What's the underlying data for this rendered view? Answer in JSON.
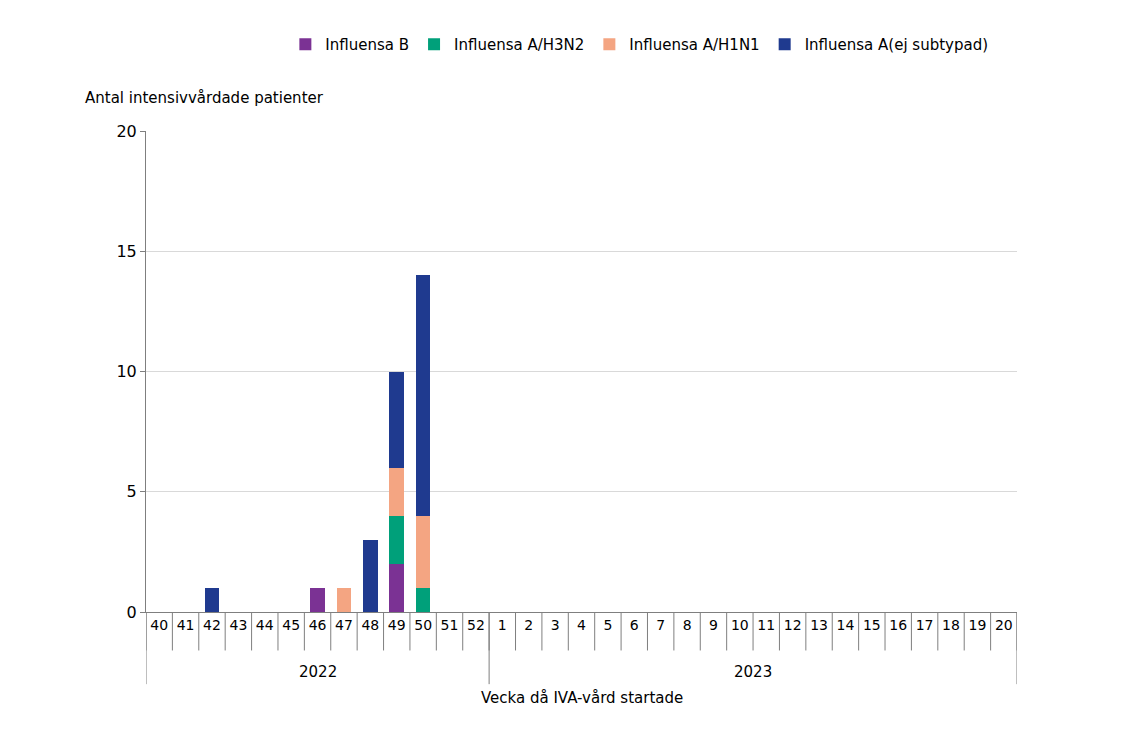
{
  "chart_data": {
    "type": "bar",
    "stacked": true,
    "y_label": "Antal intensivvårdade patienter",
    "x_label": "Vecka då IVA-vård startade",
    "categories": [
      "40",
      "41",
      "42",
      "43",
      "44",
      "45",
      "46",
      "47",
      "48",
      "49",
      "50",
      "51",
      "52",
      "1",
      "2",
      "3",
      "4",
      "5",
      "6",
      "7",
      "8",
      "9",
      "10",
      "11",
      "12",
      "13",
      "14",
      "15",
      "16",
      "17",
      "18",
      "19",
      "20"
    ],
    "category_groups": [
      "2022",
      "2022",
      "2022",
      "2022",
      "2022",
      "2022",
      "2022",
      "2022",
      "2022",
      "2022",
      "2022",
      "2022",
      "2022",
      "2023",
      "2023",
      "2023",
      "2023",
      "2023",
      "2023",
      "2023",
      "2023",
      "2023",
      "2023",
      "2023",
      "2023",
      "2023",
      "2023",
      "2023",
      "2023",
      "2023",
      "2023",
      "2023",
      "2023"
    ],
    "series": [
      {
        "name": "Influensa B",
        "color": "#7b3294",
        "values": [
          0,
          0,
          0,
          0,
          0,
          0,
          1,
          0,
          0,
          2,
          0,
          0,
          0,
          0,
          0,
          0,
          0,
          0,
          0,
          0,
          0,
          0,
          0,
          0,
          0,
          0,
          0,
          0,
          0,
          0,
          0,
          0,
          0
        ]
      },
      {
        "name": "Influensa A/H3N2",
        "color": "#00a07a",
        "values": [
          0,
          0,
          0,
          0,
          0,
          0,
          0,
          0,
          0,
          2,
          1,
          0,
          0,
          0,
          0,
          0,
          0,
          0,
          0,
          0,
          0,
          0,
          0,
          0,
          0,
          0,
          0,
          0,
          0,
          0,
          0,
          0,
          0
        ]
      },
      {
        "name": "Influensa A/H1N1",
        "color": "#f4a582",
        "values": [
          0,
          0,
          0,
          0,
          0,
          0,
          0,
          1,
          0,
          2,
          3,
          0,
          0,
          0,
          0,
          0,
          0,
          0,
          0,
          0,
          0,
          0,
          0,
          0,
          0,
          0,
          0,
          0,
          0,
          0,
          0,
          0,
          0
        ]
      },
      {
        "name": "Influensa A(ej subtypad)",
        "color": "#1f3a8f",
        "values": [
          0,
          0,
          1,
          0,
          0,
          0,
          0,
          0,
          3,
          4,
          10,
          0,
          0,
          0,
          0,
          0,
          0,
          0,
          0,
          0,
          0,
          0,
          0,
          0,
          0,
          0,
          0,
          0,
          0,
          0,
          0,
          0,
          0
        ]
      }
    ],
    "ylim": [
      0,
      20
    ],
    "yticks": [
      0,
      5,
      10,
      15,
      20
    ],
    "grid": true,
    "legend": "top"
  }
}
